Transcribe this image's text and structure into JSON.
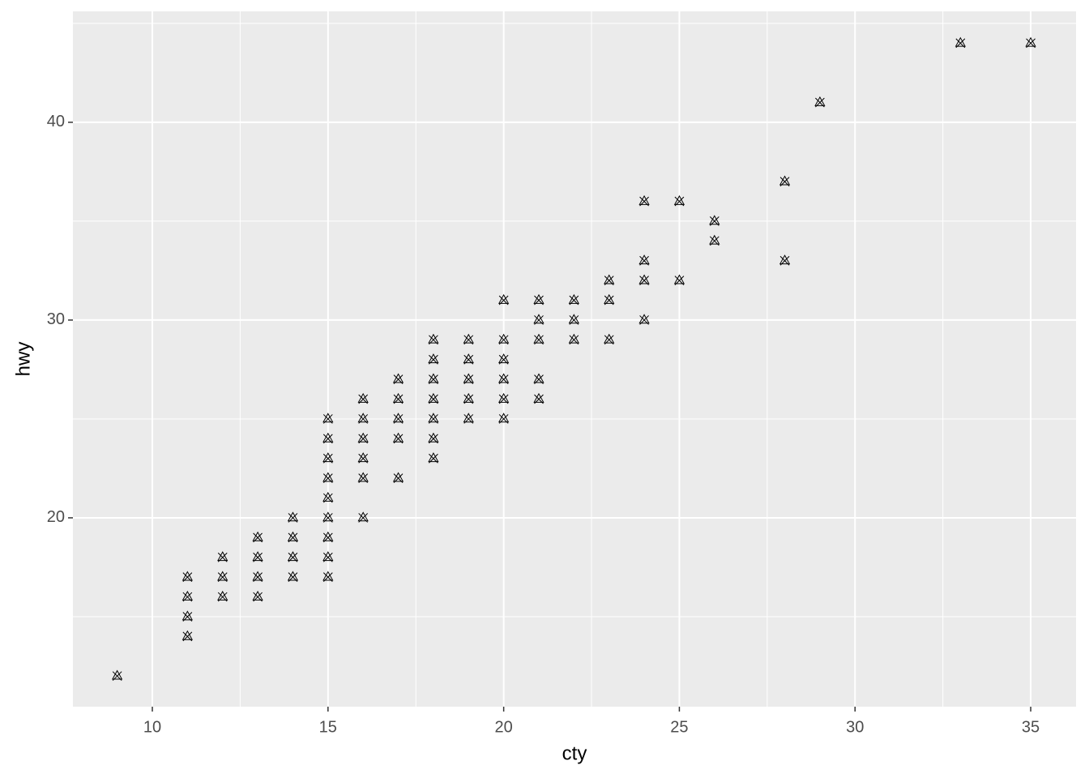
{
  "chart_data": {
    "type": "scatter",
    "x_label": "cty",
    "y_label": "hwy",
    "x": [
      9,
      11,
      11,
      11,
      11,
      12,
      12,
      12,
      13,
      13,
      13,
      13,
      14,
      14,
      14,
      14,
      15,
      15,
      15,
      15,
      15,
      15,
      15,
      15,
      15,
      16,
      16,
      16,
      16,
      16,
      16,
      17,
      17,
      17,
      17,
      17,
      18,
      18,
      18,
      18,
      18,
      18,
      18,
      19,
      19,
      19,
      19,
      19,
      20,
      20,
      20,
      20,
      20,
      20,
      21,
      21,
      21,
      21,
      21,
      22,
      22,
      22,
      23,
      23,
      23,
      24,
      24,
      24,
      24,
      25,
      25,
      26,
      26,
      28,
      28,
      29,
      33,
      35
    ],
    "values": [
      12,
      17,
      16,
      15,
      14,
      18,
      17,
      16,
      19,
      18,
      17,
      16,
      20,
      19,
      18,
      17,
      25,
      24,
      23,
      22,
      21,
      20,
      19,
      18,
      17,
      26,
      25,
      24,
      23,
      22,
      20,
      27,
      26,
      25,
      24,
      22,
      29,
      28,
      27,
      26,
      25,
      24,
      23,
      29,
      28,
      27,
      26,
      25,
      31,
      29,
      28,
      27,
      26,
      25,
      31,
      30,
      29,
      27,
      26,
      31,
      30,
      29,
      32,
      31,
      29,
      36,
      33,
      32,
      30,
      36,
      32,
      35,
      34,
      37,
      33,
      41,
      44,
      44
    ],
    "color": "#000000",
    "xlim": [
      7.74,
      36.29
    ],
    "ylim": [
      10.45,
      45.61
    ],
    "xticks": [
      10,
      15,
      20,
      25,
      30,
      35
    ],
    "yticks": [
      20,
      30,
      40
    ],
    "grid": true
  }
}
